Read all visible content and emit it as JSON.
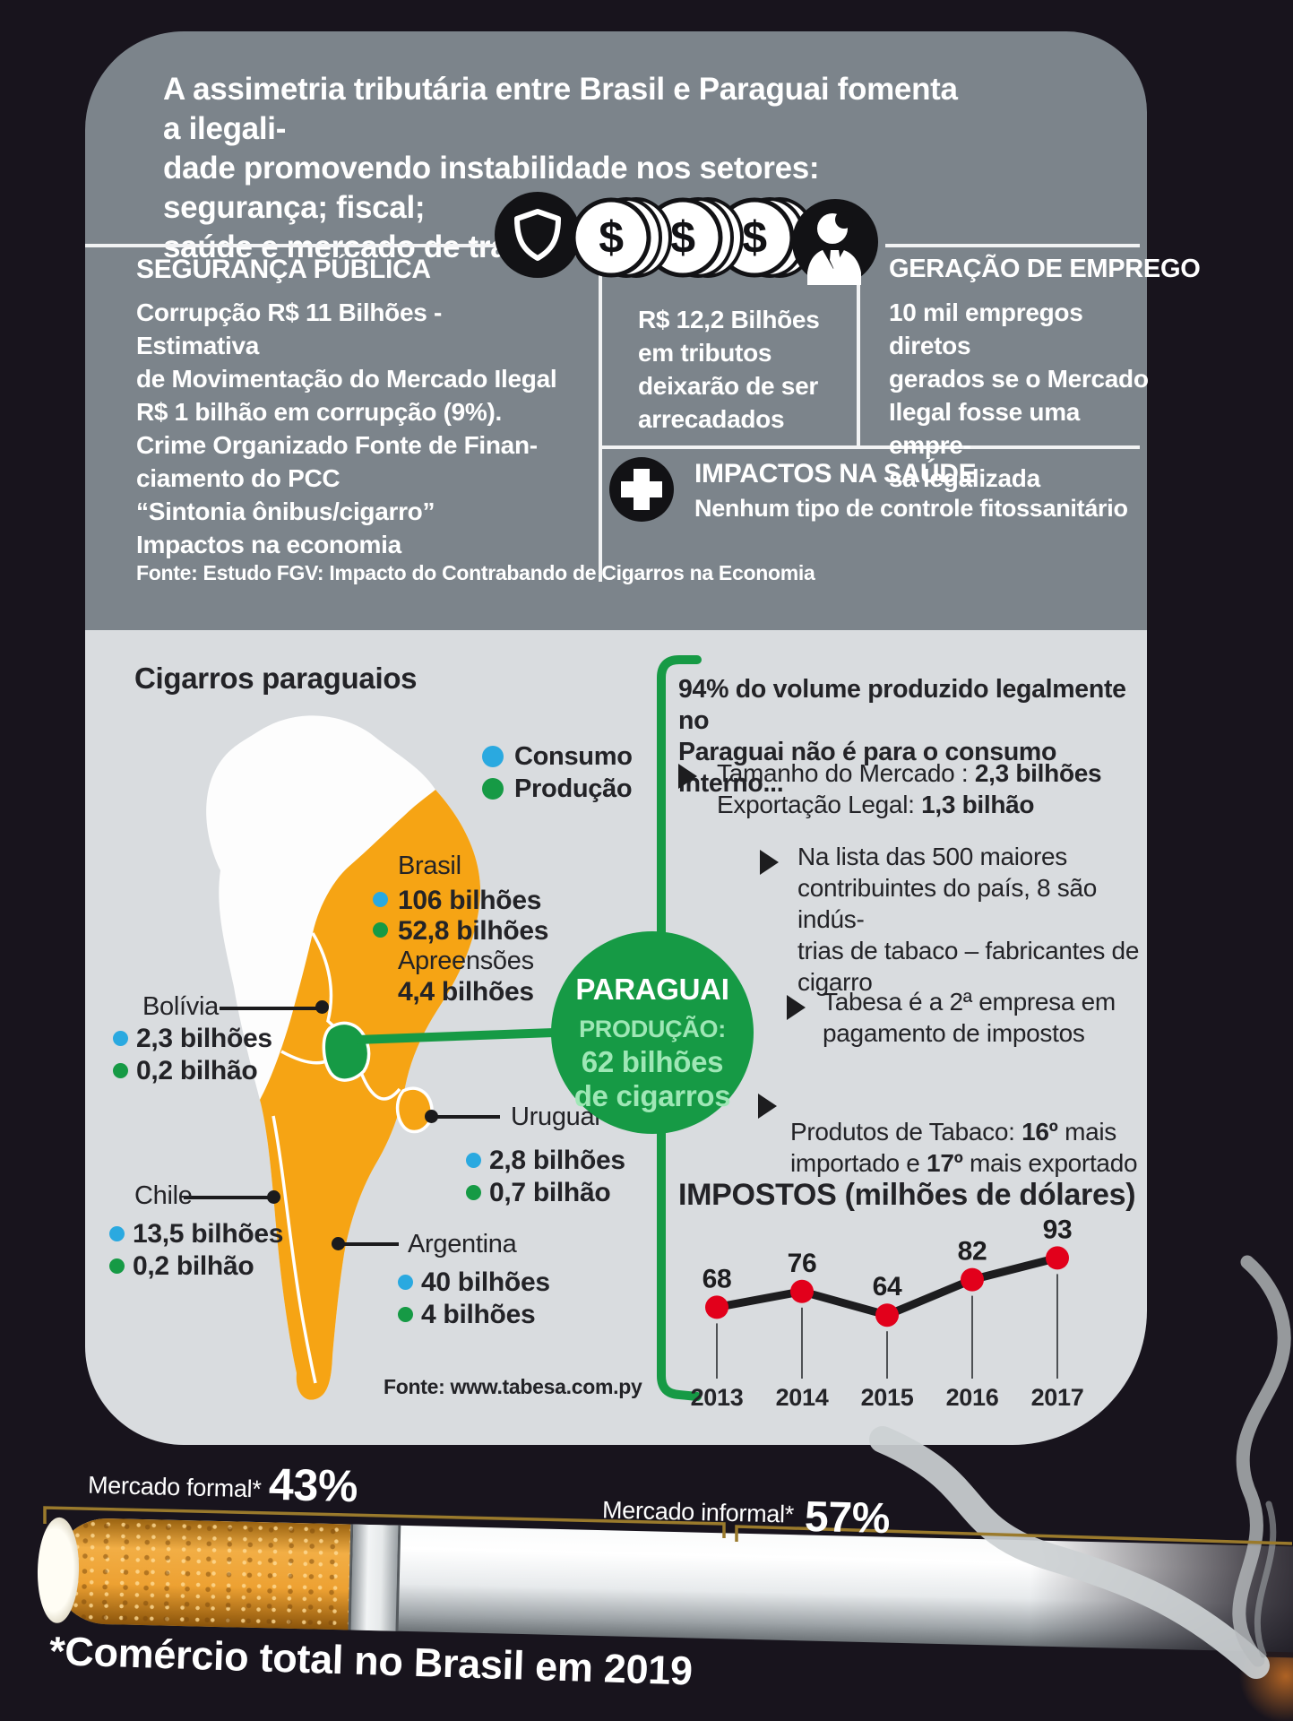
{
  "colors": {
    "page_bg": "#18141d",
    "panel_gray": "#7c848b",
    "panel_light": "#d9dcdf",
    "map_highlight": "#f6a414",
    "producao": "#169a45",
    "consumo": "#2aa9e0",
    "chart_point": "#e2001b",
    "bracket": "#9a7a2c"
  },
  "header": {
    "title": "A assimetria tributária entre Brasil e Paraguai fomenta a ilegali-\ndade promovendo instabilidade nos setores: segurança; fiscal;\nsaúde e mercado de trabalho",
    "seguranca_title": "SEGURANÇA PÚBLICA",
    "seguranca_body": "Corrupção R$ 11 Bilhões - Estimativa\nde Movimentação do Mercado Ilegal\nR$ 1 bilhão em corrupção (9%).\nCrime Organizado Fonte de Finan-\nciamento do PCC\n“Sintonia ônibus/cigarro”\nImpactos na economia",
    "tributos_body": "R$ 12,2 Bilhões\nem tributos\ndeixarão de ser\narrecadados",
    "emprego_title": "GERAÇÃO DE EMPREGO",
    "emprego_body": "10 mil empregos diretos\ngerados se o Mercado\nIlegal fosse uma empre-\nsa legalizada",
    "saude_title": "IMPACTOS NA SAÚDE",
    "saude_body": "Nenhum tipo de controle fitossanitário",
    "fonte": "Fonte: Estudo FGV: Impacto do Contrabando de Cigarros na Economia"
  },
  "map": {
    "title": "Cigarros paraguaios",
    "legend_consumo": "Consumo",
    "legend_producao": "Produção",
    "brasil": {
      "name": "Brasil",
      "consumo": "106 bilhões",
      "producao": "52,8 bilhões",
      "apreensoes_label": "Apreensões",
      "apreensoes": "4,4 bilhões"
    },
    "bolivia": {
      "name": "Bolívia",
      "consumo": "2,3 bilhões",
      "producao": "0,2 bilhão"
    },
    "uruguai": {
      "name": "Uruguai",
      "consumo": "2,8 bilhões",
      "producao": "0,7 bilhão"
    },
    "chile": {
      "name": "Chile",
      "consumo": "13,5 bilhões",
      "producao": "0,2 bilhão"
    },
    "argentina": {
      "name": "Argentina",
      "consumo": "40 bilhões",
      "producao": "4 bilhões"
    },
    "fonte": "Fonte: www.tabesa.com.py"
  },
  "paraguai": {
    "name": "PARAGUAI",
    "line1": "PRODUÇÃO:",
    "line2": "62 bilhões",
    "line3": "de cigarros"
  },
  "right_panel": {
    "intro": "94% do volume produzido legalmente no\nParaguai não é para o consumo interno...",
    "b1_l1_label": "Tamanho do Mercado : ",
    "b1_l1_value": "2,3 bilhões",
    "b1_l2_label": "Exportação Legal: ",
    "b1_l2_value": "1,3 bilhão",
    "b2": "Na lista das 500 maiores\ncontribuintes do país, 8 são indús-\ntrias de tabaco – fabricantes de\ncigarro",
    "b3": "Tabesa é a 2ª empresa em\npagamento de impostos",
    "b4_p1": "Produtos de Tabaco: ",
    "b4_p2": "16º",
    "b4_p3": " mais\nimportado e ",
    "b4_p4": "17º",
    "b4_p5": " mais exportado"
  },
  "chart_data": {
    "type": "line",
    "title": "IMPOSTOS (milhões de dólares)",
    "x": [
      "2013",
      "2014",
      "2015",
      "2016",
      "2017"
    ],
    "values": [
      68,
      76,
      64,
      82,
      93
    ],
    "ylim": [
      55,
      100
    ],
    "grid": false,
    "xlabel": "",
    "ylabel": "",
    "line_color": "#1d1d1f",
    "point_color": "#e2001b",
    "legend_position": "none"
  },
  "bottom": {
    "formal_label": "Mercado formal*",
    "formal_pct": "43%",
    "informal_label": "Mercado informal*",
    "informal_pct": "57%",
    "note": "*Comércio total no Brasil em 2019"
  }
}
